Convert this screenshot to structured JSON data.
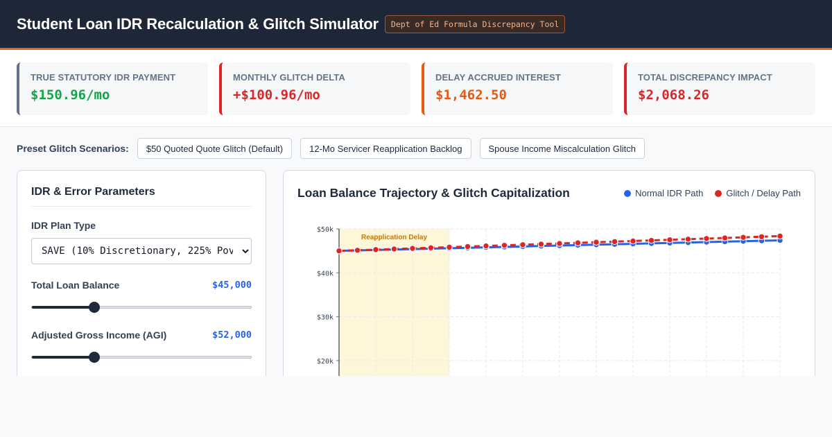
{
  "header": {
    "title": "Student Loan IDR Recalculation & Glitch Simulator",
    "badge": "Dept of Ed Formula Discrepancy Tool"
  },
  "stats": [
    {
      "label": "True Statutory IDR Payment",
      "value": "$150.96/mo",
      "tone": "green"
    },
    {
      "label": "Monthly Glitch Delta",
      "value": "+$100.96/mo",
      "tone": "red"
    },
    {
      "label": "Delay Accrued Interest",
      "value": "$1,462.50",
      "tone": "orange"
    },
    {
      "label": "Total Discrepancy Impact",
      "value": "$2,068.26",
      "tone": "red"
    }
  ],
  "presets": {
    "label": "Preset Glitch Scenarios:",
    "buttons": [
      "$50 Quoted Quote Glitch (Default)",
      "12-Mo Servicer Reapplication Backlog",
      "Spouse Income Miscalculation Glitch"
    ]
  },
  "params": {
    "title": "IDR & Error Parameters",
    "plan_label": "IDR Plan Type",
    "plan_value": "SAVE (10% Discretionary, 225% Poverty)",
    "loan_label": "Total Loan Balance",
    "loan_value": "$45,000",
    "loan_fraction": 0.285,
    "agi_label": "Adjusted Gross Income (AGI)",
    "agi_value": "$52,000",
    "agi_fraction": 0.285
  },
  "chart_data": {
    "type": "line",
    "title": "Loan Balance Trajectory & Glitch Capitalization",
    "x": [
      0,
      1,
      2,
      3,
      4,
      5,
      6,
      7,
      8,
      9,
      10,
      11,
      12,
      13,
      14,
      15,
      16,
      17,
      18,
      19,
      20,
      21,
      22,
      23,
      24
    ],
    "series": [
      {
        "name": "Normal IDR Path",
        "color": "#2563eb",
        "values": [
          45000,
          45100,
          45200,
          45300,
          45400,
          45500,
          45600,
          45700,
          45800,
          45900,
          46000,
          46100,
          46200,
          46300,
          46400,
          46500,
          46600,
          46700,
          46800,
          46900,
          47000,
          47100,
          47200,
          47300,
          47400
        ]
      },
      {
        "name": "Glitch / Delay Path",
        "color": "#dc2626",
        "values": [
          45000,
          45140,
          45280,
          45420,
          45560,
          45700,
          45840,
          45980,
          46120,
          46260,
          46400,
          46540,
          46680,
          46820,
          46960,
          47100,
          47240,
          47380,
          47520,
          47660,
          47800,
          47940,
          48080,
          48220,
          48360
        ]
      }
    ],
    "y_ticks": [
      "$50k",
      "$40k",
      "$30k",
      "$20k"
    ],
    "ylim": [
      0,
      50000
    ],
    "annotation": {
      "label": "Reapplication Delay",
      "x_start": 0,
      "x_end": 6
    },
    "grid": true,
    "legend": "top-right"
  }
}
